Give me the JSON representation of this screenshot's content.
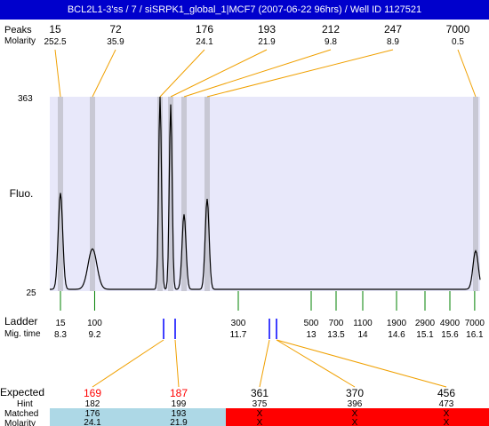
{
  "title": "BCL2L1-3'ss / 7 / siSRPK1_global_1|MCF7 (2007-06-22 96hrs) / Well ID 1127521",
  "labels": {
    "peak_size": "Peaks",
    "molarity": "Molarity",
    "fluo": "Fluo.",
    "ladder": "Ladder",
    "mig_time": "Mig. time",
    "expected": "Expected",
    "hint": "Hint",
    "matched": "Matched",
    "molarity_bottom": "Molarity"
  },
  "chart_data": {
    "type": "electropherogram",
    "ylim": [
      25,
      363
    ],
    "y_ticks": [
      "363",
      "25"
    ],
    "peaks": [
      {
        "size": "15",
        "molarity": "252.5"
      },
      {
        "size": "72",
        "molarity": "35.9"
      },
      {
        "size": "176",
        "molarity": "24.1"
      },
      {
        "size": "193",
        "molarity": "21.9"
      },
      {
        "size": "212",
        "molarity": "9.8"
      },
      {
        "size": "247",
        "molarity": "8.9"
      },
      {
        "size": "7000",
        "molarity": "0.5"
      }
    ],
    "trace_peaks": [
      {
        "mig_time": 8.3,
        "height": 0.5
      },
      {
        "mig_time": 9.15,
        "height": 0.21
      },
      {
        "mig_time": 10.7,
        "height": 1.0
      },
      {
        "mig_time": 10.93,
        "height": 0.96
      },
      {
        "mig_time": 11.08,
        "height": 0.39
      },
      {
        "mig_time": 11.55,
        "height": 0.47
      },
      {
        "mig_time": 16.12,
        "height": 0.2
      }
    ],
    "ladder": [
      {
        "size": "15",
        "mig_time": "8.3"
      },
      {
        "size": "100",
        "mig_time": "9.2"
      },
      {
        "size": "300",
        "mig_time": "11.7"
      },
      {
        "size": "500",
        "mig_time": "13"
      },
      {
        "size": "700",
        "mig_time": "13.5"
      },
      {
        "size": "1100",
        "mig_time": "14"
      },
      {
        "size": "1900",
        "mig_time": "14.6"
      },
      {
        "size": "2900",
        "mig_time": "15.1"
      },
      {
        "size": "4900",
        "mig_time": "15.6"
      },
      {
        "size": "7000",
        "mig_time": "16.1"
      }
    ],
    "expected": [
      {
        "expected": "169",
        "hint": "182",
        "matched": "176",
        "molarity": "24.1",
        "status": "matched"
      },
      {
        "expected": "187",
        "hint": "199",
        "matched": "193",
        "molarity": "21.9",
        "status": "matched"
      },
      {
        "expected": "361",
        "hint": "375",
        "matched": "X",
        "molarity": "X",
        "status": "missing"
      },
      {
        "expected": "370",
        "hint": "396",
        "matched": "X",
        "molarity": "X",
        "status": "missing"
      },
      {
        "expected": "456",
        "hint": "473",
        "matched": "X",
        "molarity": "X",
        "status": "missing"
      }
    ]
  },
  "colors": {
    "title_bg": "#0000cc",
    "plot_bg": "#e8e8fa",
    "band": "#c8c8d4",
    "connector": "#f0a000",
    "ladder_tick": "#008000",
    "marker": "#0000ff",
    "matched_bg": "#add8e6",
    "missing_bg": "#ff0000",
    "expected_text": "#ff0000"
  }
}
